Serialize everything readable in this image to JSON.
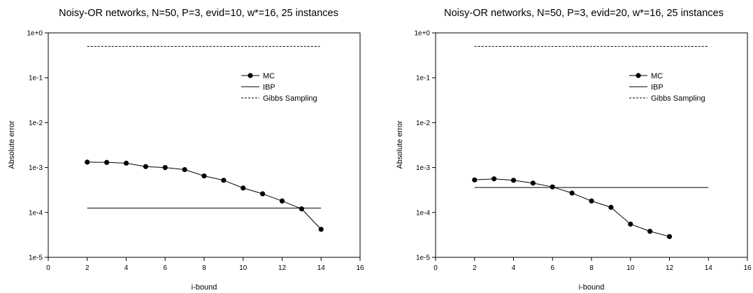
{
  "charts": [
    {
      "chart_data": {
        "type": "line",
        "title": "Noisy-OR networks, N=50, P=3, evid=10, w*=16, 25 instances",
        "xlabel": "i-bound",
        "ylabel": "Absolute error",
        "xlim": [
          0,
          16
        ],
        "ylim": [
          1e-05,
          1
        ],
        "yscale": "log",
        "x_ticks": [
          "0",
          "2",
          "4",
          "6",
          "8",
          "10",
          "12",
          "14",
          "16"
        ],
        "y_ticks": [
          "1e-5",
          "1e-4",
          "1e-3",
          "1e-2",
          "1e-1",
          "1e+0"
        ],
        "grid": false,
        "legend_position": "top-right",
        "series": [
          {
            "name": "MC",
            "style": "solid-markers",
            "x": [
              2,
              3,
              4,
              5,
              6,
              7,
              8,
              9,
              10,
              11,
              12,
              13,
              14
            ],
            "y": [
              0.00132,
              0.0013,
              0.00125,
              0.00105,
              0.001,
              0.0009,
              0.00065,
              0.00052,
              0.00035,
              0.00026,
              0.00018,
              0.00012,
              4.2e-05
            ]
          },
          {
            "name": "IBP",
            "style": "solid",
            "x": [
              2,
              14
            ],
            "y": [
              0.000125,
              0.000125
            ]
          },
          {
            "name": "Gibbs Sampling",
            "style": "dashed",
            "x": [
              2,
              14
            ],
            "y": [
              0.5,
              0.5
            ]
          }
        ]
      }
    },
    {
      "chart_data": {
        "type": "line",
        "title": "Noisy-OR networks, N=50, P=3, evid=20, w*=16, 25 instances",
        "xlabel": "i-bound",
        "ylabel": "Absolute error",
        "xlim": [
          0,
          16
        ],
        "ylim": [
          1e-05,
          1
        ],
        "yscale": "log",
        "x_ticks": [
          "0",
          "2",
          "4",
          "6",
          "8",
          "10",
          "12",
          "14",
          "16"
        ],
        "y_ticks": [
          "1e-5",
          "1e-4",
          "1e-3",
          "1e-2",
          "1e-1",
          "1e+0"
        ],
        "grid": false,
        "legend_position": "top-right",
        "series": [
          {
            "name": "MC",
            "style": "solid-markers",
            "x": [
              2,
              3,
              4,
              5,
              6,
              7,
              8,
              9,
              10,
              11,
              12
            ],
            "y": [
              0.00053,
              0.00056,
              0.00052,
              0.00045,
              0.00037,
              0.00027,
              0.00018,
              0.00013,
              5.5e-05,
              3.8e-05,
              2.9e-05
            ]
          },
          {
            "name": "IBP",
            "style": "solid",
            "x": [
              2,
              14
            ],
            "y": [
              0.00036,
              0.00036
            ]
          },
          {
            "name": "Gibbs Sampling",
            "style": "dashed",
            "x": [
              2,
              14
            ],
            "y": [
              0.5,
              0.5
            ]
          }
        ]
      }
    }
  ]
}
